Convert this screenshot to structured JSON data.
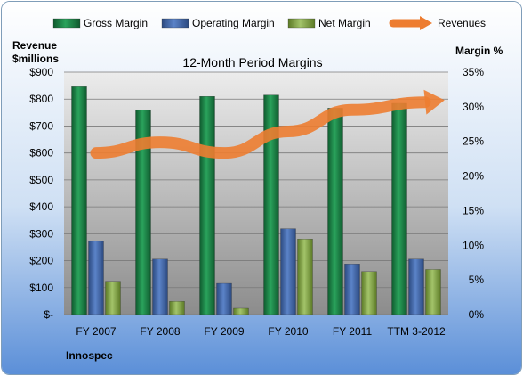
{
  "chart_data": {
    "type": "bar",
    "title": "12-Month Period Margins",
    "company": "Innospec",
    "left_axis_title": [
      "Revenue",
      "$millions"
    ],
    "right_axis_title": "Margin %",
    "categories": [
      "FY 2007",
      "FY 2008",
      "FY 2009",
      "FY 2010",
      "FY 2011",
      "TTM 3-2012"
    ],
    "left_ticks": [
      "$-",
      "$100",
      "$200",
      "$300",
      "$400",
      "$500",
      "$600",
      "$700",
      "$800",
      "$900"
    ],
    "right_ticks": [
      "0%",
      "5%",
      "10%",
      "15%",
      "20%",
      "25%",
      "30%",
      "35%"
    ],
    "ylim_left": [
      0,
      900
    ],
    "ylim_right": [
      0,
      35
    ],
    "series": [
      {
        "name": "Gross Margin",
        "axis": "right",
        "values": [
          32.9,
          29.5,
          31.5,
          31.7,
          29.8,
          30.5
        ],
        "color": "#1e8a4a"
      },
      {
        "name": "Operating Margin",
        "axis": "right",
        "values": [
          10.6,
          8.0,
          4.5,
          12.4,
          7.3,
          8.0
        ],
        "color": "#4a6fb0"
      },
      {
        "name": "Net Margin",
        "axis": "right",
        "values": [
          4.8,
          1.9,
          0.9,
          10.9,
          6.2,
          6.5
        ],
        "color": "#8ab04a"
      },
      {
        "name": "Revenues",
        "axis": "left",
        "type": "line",
        "values": [
          600,
          640,
          600,
          680,
          760,
          785
        ],
        "color": "#ed7d31"
      }
    ],
    "grid": true,
    "legend": "top"
  }
}
